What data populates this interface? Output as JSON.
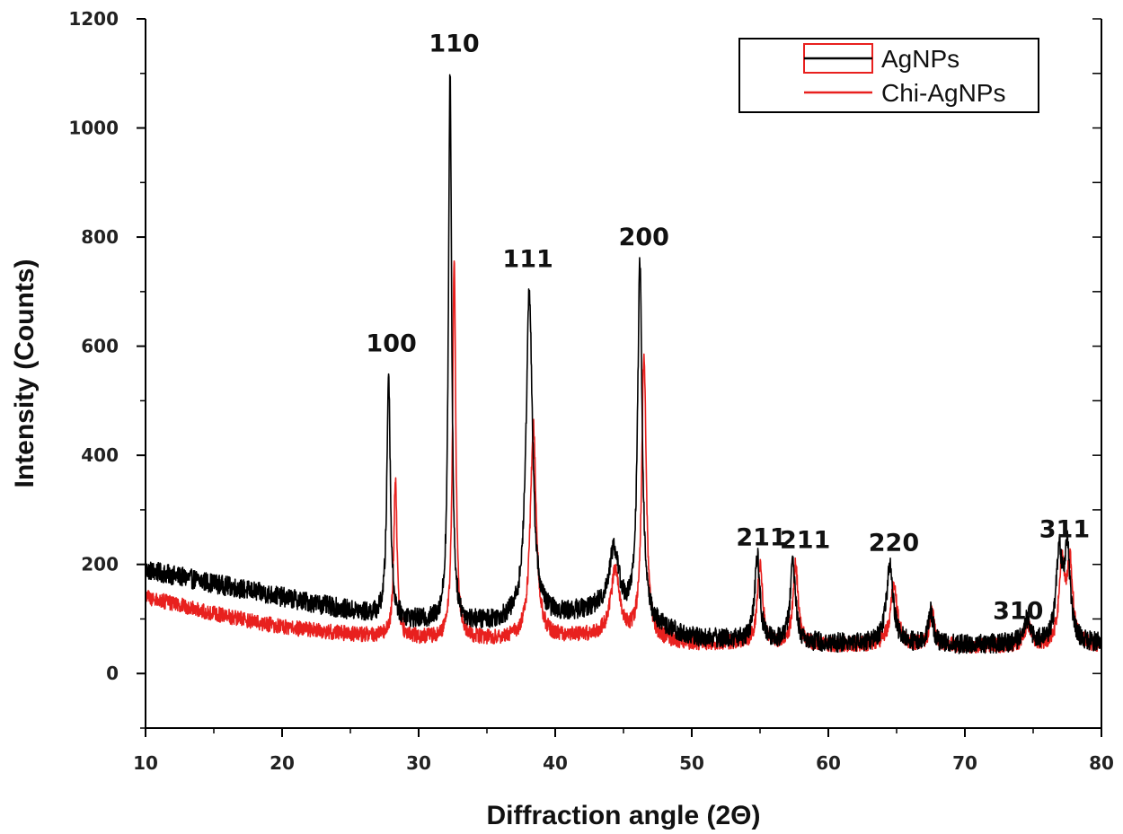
{
  "chart_data": {
    "type": "line",
    "title": "",
    "xlabel": "Diffraction angle (2Θ)",
    "ylabel": "Intensity (Counts)",
    "xlim": [
      10,
      80
    ],
    "ylim": [
      -100,
      1200
    ],
    "xticks": [
      10,
      20,
      30,
      40,
      50,
      60,
      70,
      80
    ],
    "yticks": [
      0,
      200,
      400,
      600,
      800,
      1000,
      1200
    ],
    "legend_position": "top-right",
    "colors": {
      "AgNPs": "#000000",
      "Chi-AgNPs": "#e8201e"
    },
    "series": [
      {
        "name": "AgNPs",
        "baseline": [
          [
            10,
            190
          ],
          [
            15,
            165
          ],
          [
            20,
            140
          ],
          [
            25,
            115
          ],
          [
            28,
            100
          ],
          [
            30,
            95
          ],
          [
            33,
            90
          ],
          [
            36,
            95
          ],
          [
            40,
            105
          ],
          [
            43,
            115
          ],
          [
            46,
            95
          ],
          [
            50,
            65
          ],
          [
            55,
            60
          ],
          [
            60,
            55
          ],
          [
            65,
            55
          ],
          [
            70,
            52
          ],
          [
            75,
            55
          ],
          [
            80,
            55
          ]
        ],
        "peaks": [
          {
            "x": 27.8,
            "height": 450,
            "width": 0.15
          },
          {
            "x": 32.3,
            "height": 1010,
            "width": 0.14
          },
          {
            "x": 38.1,
            "height": 600,
            "width": 0.28
          },
          {
            "x": 44.3,
            "height": 120,
            "width": 0.45
          },
          {
            "x": 46.2,
            "height": 650,
            "width": 0.2
          },
          {
            "x": 54.8,
            "height": 155,
            "width": 0.22
          },
          {
            "x": 57.4,
            "height": 150,
            "width": 0.22
          },
          {
            "x": 64.5,
            "height": 140,
            "width": 0.3
          },
          {
            "x": 67.5,
            "height": 60,
            "width": 0.22
          },
          {
            "x": 74.5,
            "height": 40,
            "width": 0.3
          },
          {
            "x": 76.9,
            "height": 165,
            "width": 0.25
          },
          {
            "x": 77.5,
            "height": 165,
            "width": 0.25
          }
        ],
        "noise": 18
      },
      {
        "name": "Chi-AgNPs",
        "baseline": [
          [
            10,
            140
          ],
          [
            15,
            110
          ],
          [
            20,
            85
          ],
          [
            25,
            72
          ],
          [
            28,
            68
          ],
          [
            30,
            65
          ],
          [
            33,
            63
          ],
          [
            36,
            63
          ],
          [
            40,
            65
          ],
          [
            43,
            68
          ],
          [
            46,
            62
          ],
          [
            50,
            55
          ],
          [
            55,
            55
          ],
          [
            60,
            52
          ],
          [
            65,
            52
          ],
          [
            70,
            50
          ],
          [
            75,
            50
          ],
          [
            80,
            50
          ]
        ],
        "peaks": [
          {
            "x": 28.3,
            "height": 290,
            "width": 0.14
          },
          {
            "x": 32.6,
            "height": 700,
            "width": 0.14
          },
          {
            "x": 38.4,
            "height": 390,
            "width": 0.26
          },
          {
            "x": 44.4,
            "height": 120,
            "width": 0.4
          },
          {
            "x": 46.5,
            "height": 520,
            "width": 0.2
          },
          {
            "x": 55.0,
            "height": 145,
            "width": 0.22
          },
          {
            "x": 57.6,
            "height": 145,
            "width": 0.22
          },
          {
            "x": 64.8,
            "height": 110,
            "width": 0.3
          },
          {
            "x": 67.6,
            "height": 60,
            "width": 0.22
          },
          {
            "x": 74.6,
            "height": 40,
            "width": 0.3
          },
          {
            "x": 77.1,
            "height": 145,
            "width": 0.25
          },
          {
            "x": 77.7,
            "height": 145,
            "width": 0.25
          }
        ],
        "noise": 14
      }
    ],
    "annotations": [
      {
        "text": "100",
        "x": 28.0,
        "y": 590
      },
      {
        "text": "110",
        "x": 32.6,
        "y": 1140
      },
      {
        "text": "111",
        "x": 38.0,
        "y": 745
      },
      {
        "text": "200",
        "x": 46.5,
        "y": 785
      },
      {
        "text": "211",
        "x": 55.1,
        "y": 235
      },
      {
        "text": "211",
        "x": 58.3,
        "y": 230
      },
      {
        "text": "220",
        "x": 64.8,
        "y": 225
      },
      {
        "text": "310",
        "x": 73.9,
        "y": 100
      },
      {
        "text": "311",
        "x": 77.3,
        "y": 250
      }
    ]
  }
}
